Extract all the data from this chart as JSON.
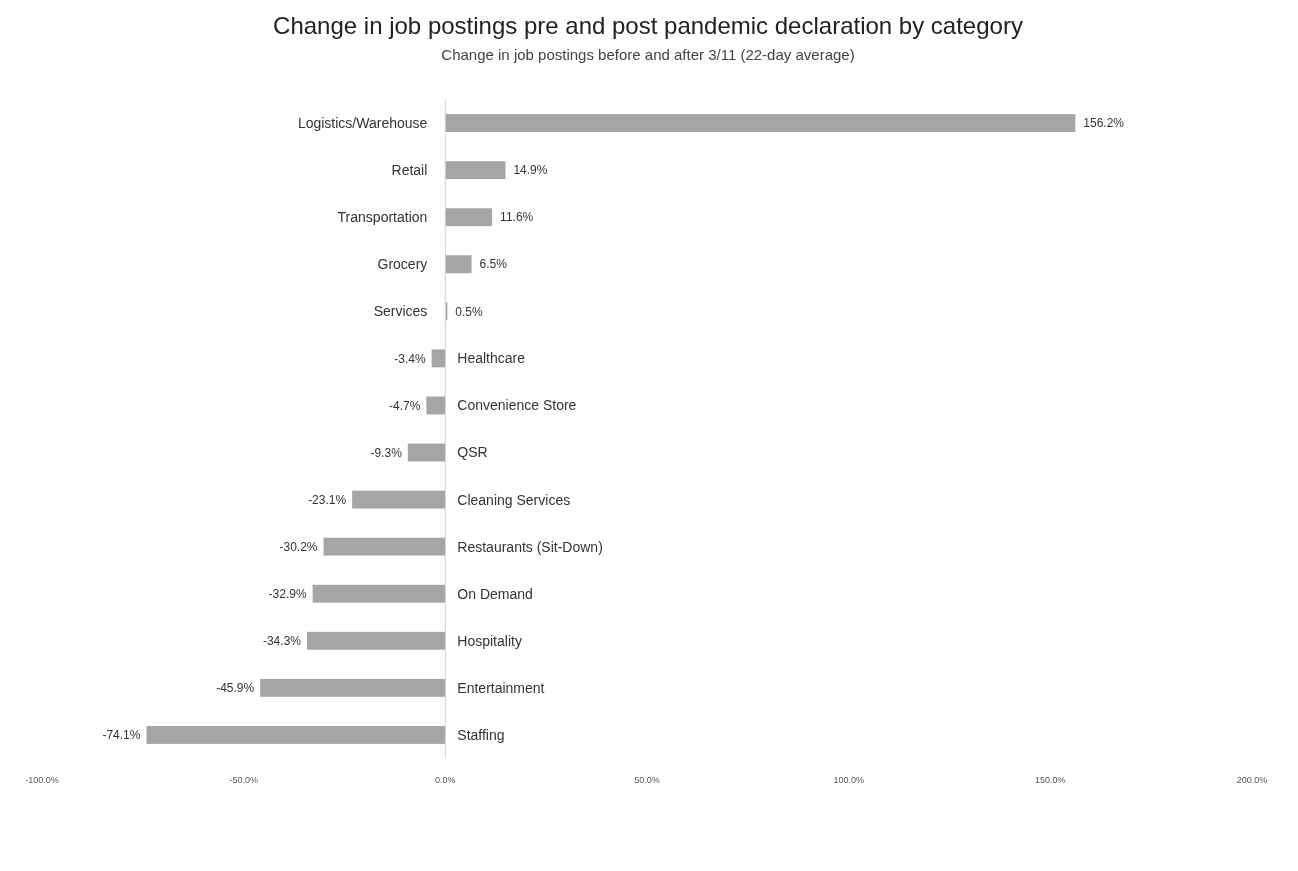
{
  "chart_data": {
    "type": "bar",
    "orientation": "horizontal",
    "title": "Change in job postings pre and post pandemic declaration by category",
    "subtitle": "Change in job postings before and after 3/11 (22-day average)",
    "categories": [
      "Logistics/Warehouse",
      "Retail",
      "Transportation",
      "Grocery",
      "Services",
      "Healthcare",
      "Convenience Store",
      "QSR",
      "Cleaning Services",
      "Restaurants (Sit-Down)",
      "On Demand",
      "Hospitality",
      "Entertainment",
      "Staffing"
    ],
    "values": [
      156.2,
      14.9,
      11.6,
      6.5,
      0.5,
      -3.4,
      -4.7,
      -9.3,
      -23.1,
      -30.2,
      -32.9,
      -34.3,
      -45.9,
      -74.1
    ],
    "value_labels": [
      "156.2%",
      "14.9%",
      "11.6%",
      "6.5%",
      "0.5%",
      "-3.4%",
      "-4.7%",
      "-9.3%",
      "-23.1%",
      "-30.2%",
      "-32.9%",
      "-34.3%",
      "-45.9%",
      "-74.1%"
    ],
    "color": "#a5a5a5",
    "xlim": [
      -100,
      200
    ],
    "xticks": [
      {
        "value": -100,
        "label": "-100.0%"
      },
      {
        "value": -50,
        "label": "-50.0%"
      },
      {
        "value": 0,
        "label": "0.0%"
      },
      {
        "value": 50,
        "label": "50.0%"
      },
      {
        "value": 100,
        "label": "100.0%"
      },
      {
        "value": 150,
        "label": "150.0%"
      },
      {
        "value": 200,
        "label": "200.0%"
      }
    ],
    "grid": false
  }
}
